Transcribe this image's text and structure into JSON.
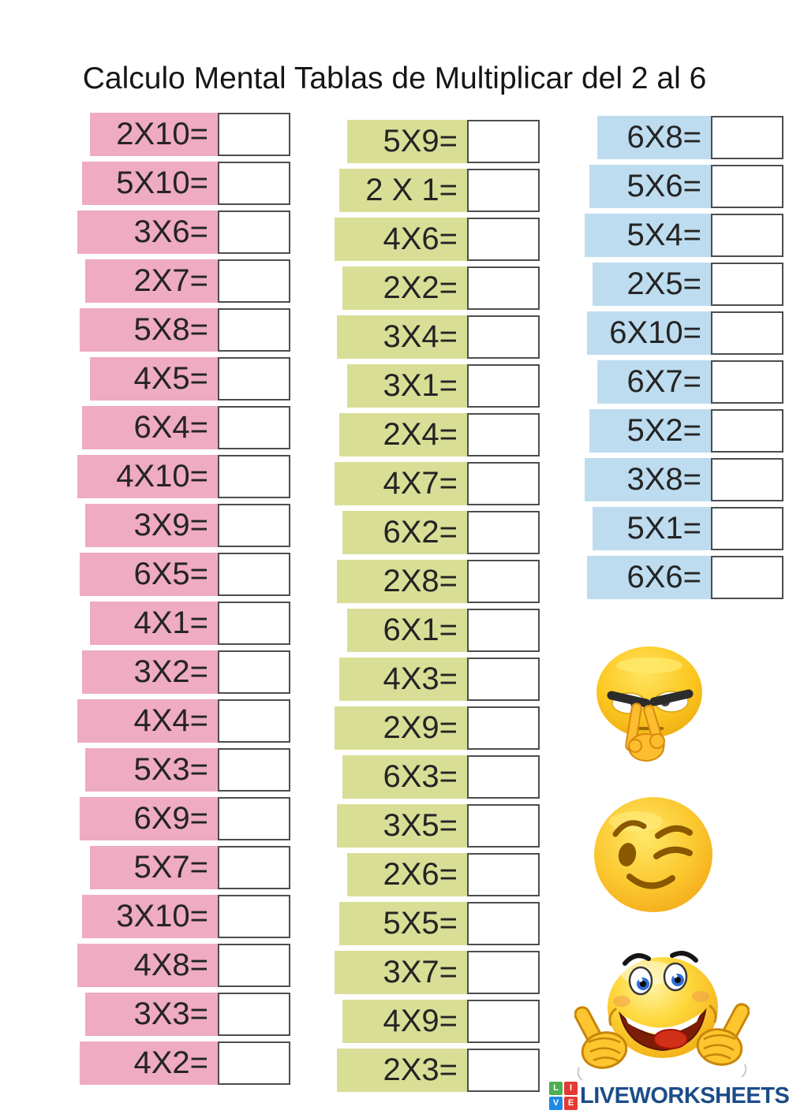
{
  "title": "Calculo Mental Tablas de Multiplicar del 2 al 6",
  "columns": [
    {
      "id": "pink",
      "color": "#efabc1",
      "items": [
        "2X10=",
        "5X10=",
        "3X6=",
        "2X7=",
        "5X8=",
        "4X5=",
        "6X4=",
        "4X10=",
        "3X9=",
        "6X5=",
        "4X1=",
        "3X2=",
        "4X4=",
        "5X3=",
        "6X9=",
        "5X7=",
        "3X10=",
        "4X8=",
        "3X3=",
        "4X2="
      ]
    },
    {
      "id": "green",
      "color": "#d9de96",
      "items": [
        "5X9=",
        "2 X 1=",
        "4X6=",
        "2X2=",
        "3X4=",
        "3X1=",
        "2X4=",
        "4X7=",
        "6X2=",
        "2X8=",
        "6X1=",
        "4X3=",
        "2X9=",
        "6X3=",
        "3X5=",
        "2X6=",
        "5X5=",
        "3X7=",
        "4X9=",
        "2X3="
      ]
    },
    {
      "id": "blue",
      "color": "#bedcf0",
      "items": [
        "6X8=",
        "5X6=",
        "5X4=",
        "2X5=",
        "6X10=",
        "6X7=",
        "5X2=",
        "3X8=",
        "5X1=",
        "6X6="
      ]
    }
  ],
  "answer_box": {
    "value": "",
    "border_color": "#4d4d4d"
  },
  "emojis": [
    {
      "name": "watching-you-emoji"
    },
    {
      "name": "winking-emoji"
    },
    {
      "name": "thumbs-up-emoji"
    }
  ],
  "footer_logo": {
    "text": "LIVEWORKSHEETS",
    "text_color": "#1b4d88",
    "tiles": [
      {
        "letter": "L",
        "color": "#4caf50"
      },
      {
        "letter": "I",
        "color": "#e53935"
      },
      {
        "letter": "V",
        "color": "#1e88e5"
      },
      {
        "letter": "E",
        "color": "#e53935"
      }
    ]
  }
}
